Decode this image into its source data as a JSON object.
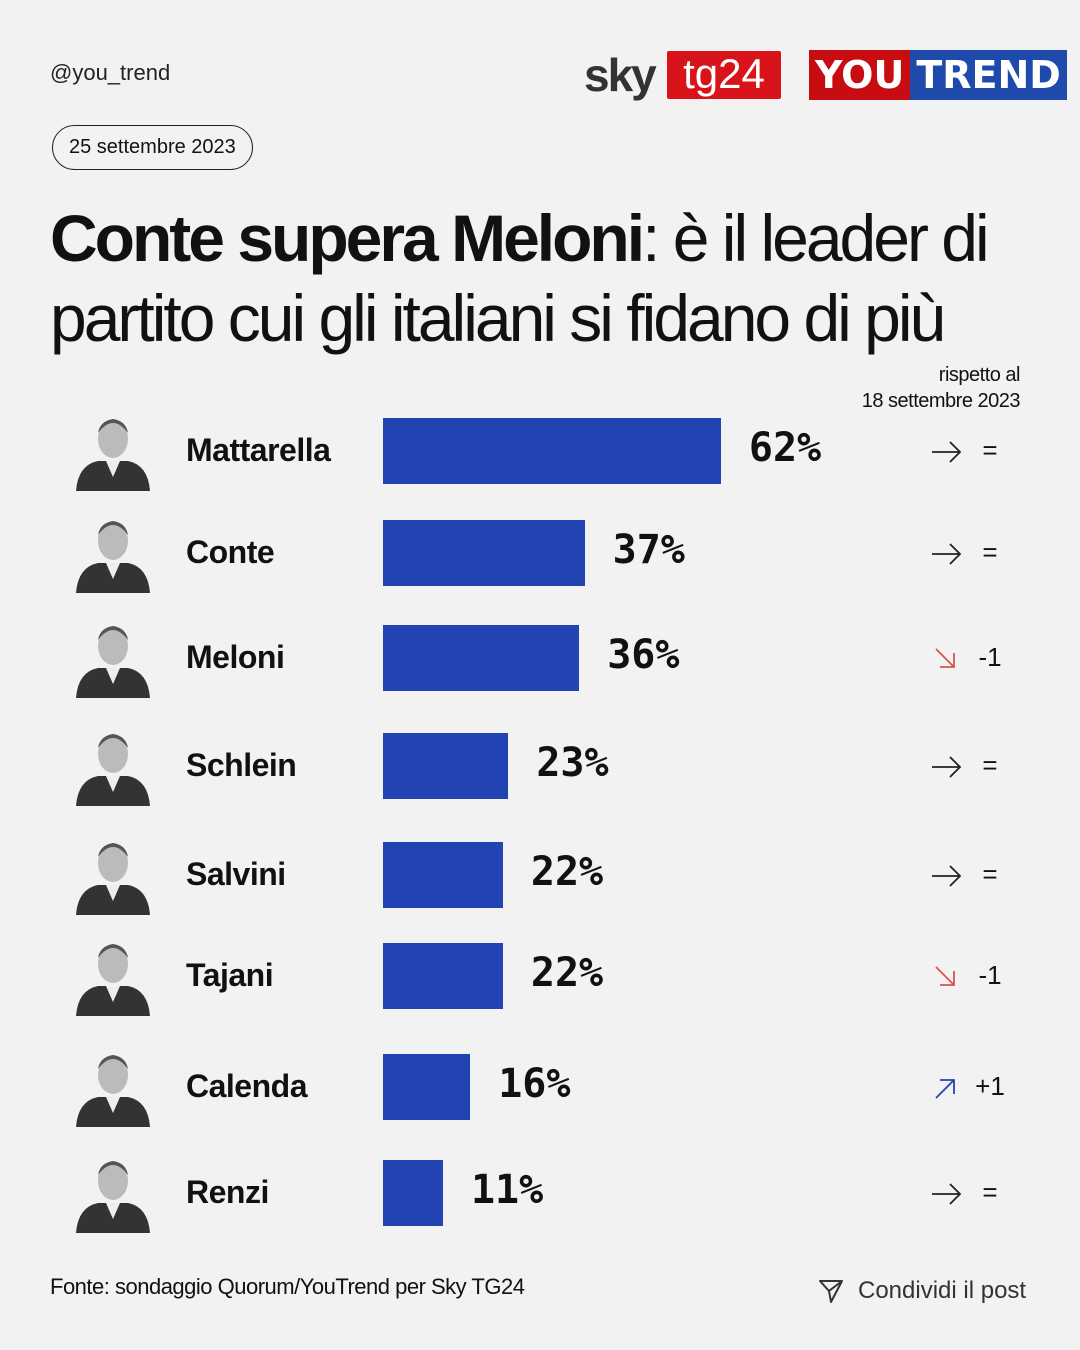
{
  "header": {
    "handle": "@you_trend",
    "date": "25 settembre 2023",
    "logo_sky": "sky",
    "logo_tg24": "tg24",
    "logo_you": "YOU",
    "logo_trend": "TREND"
  },
  "title": {
    "bold": "Conte supera Meloni",
    "rest": ": è il leader di partito cui gli italiani si fidano di più"
  },
  "comparison_label": {
    "line1": "rispetto al",
    "line2": "18 settembre 2023"
  },
  "chart_data": {
    "type": "bar",
    "orientation": "horizontal",
    "title": "Conte supera Meloni: è il leader di partito cui gli italiani si fidano di più",
    "categories": [
      "Mattarella",
      "Conte",
      "Meloni",
      "Schlein",
      "Salvini",
      "Tajani",
      "Calenda",
      "Renzi"
    ],
    "values": [
      62,
      37,
      36,
      23,
      22,
      22,
      16,
      11
    ],
    "labels": [
      "62%",
      "37%",
      "36%",
      "23%",
      "22%",
      "22%",
      "16%",
      "11%"
    ],
    "change": [
      "=",
      "=",
      "-1",
      "=",
      "=",
      "-1",
      "+1",
      "="
    ],
    "change_direction": [
      "flat",
      "flat",
      "down",
      "flat",
      "flat",
      "down",
      "up",
      "flat"
    ],
    "unit": "%",
    "xlim": [
      0,
      100
    ]
  },
  "colors": {
    "bar": "#2244b3",
    "down": "#d9534f",
    "up": "#2244b3",
    "flat": "#222222"
  },
  "footer": {
    "source": "Fonte: sondaggio Quorum/YouTrend per Sky TG24",
    "share": "Condividi il post",
    "share_icon": "send-icon"
  }
}
